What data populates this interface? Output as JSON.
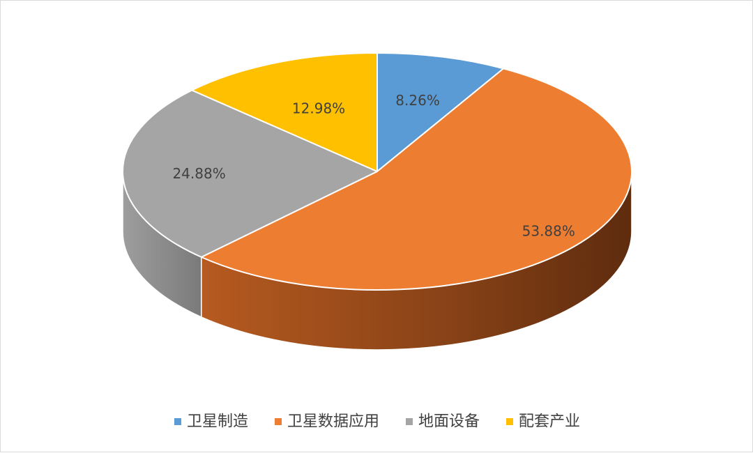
{
  "chart_data": {
    "type": "pie",
    "title": "",
    "categories": [
      "卫星制造",
      "卫星数据应用",
      "地面设备",
      "配套产业"
    ],
    "values": [
      8.26,
      53.88,
      24.88,
      12.98
    ],
    "labels": [
      "8.26%",
      "53.88%",
      "24.88%",
      "12.98%"
    ],
    "colors": [
      "#5B9BD5",
      "#ED7D31",
      "#A5A5A5",
      "#FFC000"
    ],
    "legend_position": "bottom",
    "style": "3d"
  }
}
